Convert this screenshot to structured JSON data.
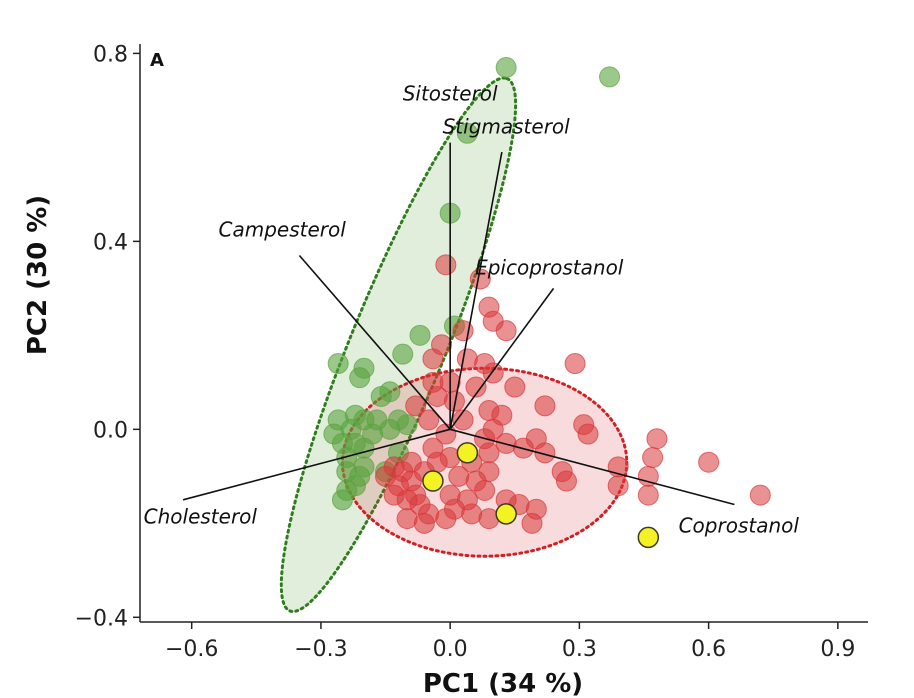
{
  "chart_data": {
    "type": "scatter",
    "title": "",
    "panel_label": "A",
    "xlabel": "PC1 (34 %)",
    "ylabel": "PC2 (30 %)",
    "xlim": [
      -0.72,
      0.97
    ],
    "ylim": [
      -0.41,
      0.82
    ],
    "xticks": [
      {
        "value": -0.6,
        "label": "−0.6"
      },
      {
        "value": -0.3,
        "label": "−0.3"
      },
      {
        "value": 0.0,
        "label": "0.0"
      },
      {
        "value": 0.3,
        "label": "0.3"
      },
      {
        "value": 0.6,
        "label": "0.6"
      },
      {
        "value": 0.9,
        "label": "0.9"
      }
    ],
    "yticks": [
      {
        "value": -0.4,
        "label": "−0.4"
      },
      {
        "value": 0.0,
        "label": "0.0"
      },
      {
        "value": 0.4,
        "label": "0.4"
      },
      {
        "value": 0.8,
        "label": "0.8"
      }
    ],
    "grid": false,
    "legend": "none",
    "series": [
      {
        "color": "#5aa33f",
        "fill_opacity": 0.6,
        "points": [
          [
            0.13,
            0.77
          ],
          [
            0.37,
            0.75
          ],
          [
            0.04,
            0.63
          ],
          [
            0.0,
            0.46
          ],
          [
            0.01,
            0.22
          ],
          [
            -0.07,
            0.2
          ],
          [
            -0.11,
            0.16
          ],
          [
            -0.26,
            0.14
          ],
          [
            -0.2,
            0.13
          ],
          [
            -0.21,
            0.11
          ],
          [
            -0.14,
            0.08
          ],
          [
            -0.16,
            0.07
          ],
          [
            -0.22,
            0.03
          ],
          [
            -0.26,
            0.02
          ],
          [
            -0.2,
            0.02
          ],
          [
            -0.17,
            0.02
          ],
          [
            -0.12,
            0.02
          ],
          [
            -0.23,
            0.0
          ],
          [
            -0.27,
            -0.01
          ],
          [
            -0.18,
            -0.01
          ],
          [
            -0.14,
            0.0
          ],
          [
            -0.1,
            0.01
          ],
          [
            -0.22,
            -0.03
          ],
          [
            -0.25,
            -0.03
          ],
          [
            -0.2,
            -0.04
          ],
          [
            -0.24,
            -0.06
          ],
          [
            -0.2,
            -0.08
          ],
          [
            -0.21,
            -0.1
          ],
          [
            -0.24,
            -0.09
          ],
          [
            -0.22,
            -0.12
          ],
          [
            -0.24,
            -0.13
          ],
          [
            -0.25,
            -0.15
          ],
          [
            -0.15,
            -0.09
          ],
          [
            -0.12,
            -0.05
          ]
        ]
      },
      {
        "color": "#d9383b",
        "fill_opacity": 0.55,
        "points": [
          [
            -0.01,
            0.35
          ],
          [
            0.07,
            0.32
          ],
          [
            0.09,
            0.26
          ],
          [
            0.1,
            0.23
          ],
          [
            0.13,
            0.21
          ],
          [
            0.03,
            0.21
          ],
          [
            -0.02,
            0.18
          ],
          [
            0.04,
            0.15
          ],
          [
            -0.04,
            0.15
          ],
          [
            0.08,
            0.14
          ],
          [
            0.29,
            0.14
          ],
          [
            0.1,
            0.12
          ],
          [
            0.0,
            0.1
          ],
          [
            -0.04,
            0.1
          ],
          [
            0.06,
            0.09
          ],
          [
            0.15,
            0.09
          ],
          [
            -0.03,
            0.07
          ],
          [
            0.01,
            0.06
          ],
          [
            -0.08,
            0.05
          ],
          [
            0.22,
            0.05
          ],
          [
            0.09,
            0.04
          ],
          [
            0.12,
            0.03
          ],
          [
            -0.05,
            0.02
          ],
          [
            0.03,
            0.02
          ],
          [
            0.1,
            0.0
          ],
          [
            0.31,
            0.01
          ],
          [
            0.32,
            -0.01
          ],
          [
            0.2,
            -0.02
          ],
          [
            0.48,
            -0.02
          ],
          [
            -0.01,
            -0.01
          ],
          [
            0.08,
            -0.02
          ],
          [
            0.13,
            -0.03
          ],
          [
            0.17,
            -0.04
          ],
          [
            0.22,
            -0.05
          ],
          [
            -0.04,
            -0.04
          ],
          [
            0.04,
            -0.05
          ],
          [
            0.09,
            -0.05
          ],
          [
            0.47,
            -0.06
          ],
          [
            0.6,
            -0.07
          ],
          [
            0.0,
            -0.06
          ],
          [
            0.05,
            -0.07
          ],
          [
            -0.03,
            -0.07
          ],
          [
            -0.09,
            -0.07
          ],
          [
            0.26,
            -0.09
          ],
          [
            0.39,
            -0.08
          ],
          [
            0.09,
            -0.09
          ],
          [
            -0.13,
            -0.08
          ],
          [
            -0.11,
            -0.09
          ],
          [
            -0.06,
            -0.09
          ],
          [
            0.46,
            -0.1
          ],
          [
            0.02,
            -0.1
          ],
          [
            0.06,
            -0.11
          ],
          [
            0.27,
            -0.11
          ],
          [
            -0.15,
            -0.1
          ],
          [
            -0.09,
            -0.11
          ],
          [
            -0.04,
            -0.11
          ],
          [
            0.39,
            -0.12
          ],
          [
            -0.12,
            -0.12
          ],
          [
            0.08,
            -0.13
          ],
          [
            -0.13,
            -0.14
          ],
          [
            0.72,
            -0.14
          ],
          [
            -0.08,
            -0.14
          ],
          [
            0.46,
            -0.14
          ],
          [
            0.0,
            -0.14
          ],
          [
            0.13,
            -0.15
          ],
          [
            -0.1,
            -0.15
          ],
          [
            0.04,
            -0.15
          ],
          [
            0.16,
            -0.16
          ],
          [
            -0.07,
            -0.16
          ],
          [
            0.01,
            -0.17
          ],
          [
            0.2,
            -0.17
          ],
          [
            0.05,
            -0.18
          ],
          [
            -0.05,
            -0.18
          ],
          [
            0.09,
            -0.19
          ],
          [
            -0.01,
            -0.19
          ],
          [
            -0.06,
            -0.2
          ],
          [
            0.19,
            -0.2
          ],
          [
            -0.1,
            -0.19
          ]
        ]
      },
      {
        "color": "#f4f125",
        "stroke": "#3a3a1a",
        "fill_opacity": 1,
        "points": [
          [
            0.04,
            -0.05
          ],
          [
            -0.04,
            -0.11
          ],
          [
            0.13,
            -0.18
          ],
          [
            0.46,
            -0.23
          ]
        ]
      }
    ],
    "ellipses": [
      {
        "color": "#2f7d1c",
        "fill": "#5aa33f",
        "fill_opacity": 0.18,
        "cx": -0.12,
        "cy": 0.18,
        "rx": 0.62,
        "ry": 0.11,
        "angle_deg": 66
      },
      {
        "color": "#d11f24",
        "fill": "#d9383b",
        "fill_opacity": 0.18,
        "cx": 0.08,
        "cy": -0.07,
        "rx": 0.33,
        "ry": 0.2,
        "angle_deg": 0
      }
    ],
    "loadings": [
      {
        "label": "Sitosterol",
        "x": 0.0,
        "y": 0.61,
        "label_x": 0.0,
        "label_y": 0.7
      },
      {
        "label": "Stigmasterol",
        "x": 0.12,
        "y": 0.59,
        "label_x": 0.13,
        "label_y": 0.63
      },
      {
        "label": "Campesterol",
        "x": -0.35,
        "y": 0.37,
        "label_x": -0.39,
        "label_y": 0.41
      },
      {
        "label": "Epicoprostanol",
        "x": 0.24,
        "y": 0.3,
        "label_x": 0.23,
        "label_y": 0.33
      },
      {
        "label": "Cholesterol",
        "x": -0.62,
        "y": -0.15,
        "label_x": -0.58,
        "label_y": -0.2
      },
      {
        "label": "Coprostanol",
        "x": 0.66,
        "y": -0.16,
        "label_x": 0.67,
        "label_y": -0.22
      }
    ]
  }
}
